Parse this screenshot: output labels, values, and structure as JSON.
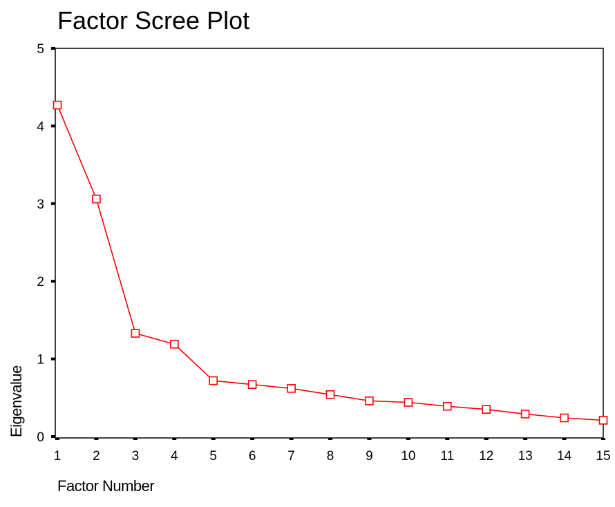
{
  "chart_data": {
    "type": "line",
    "title": "Factor Scree Plot",
    "xlabel": "Factor Number",
    "ylabel": "Eigenvalue",
    "x": [
      1,
      2,
      3,
      4,
      5,
      6,
      7,
      8,
      9,
      10,
      11,
      12,
      13,
      14,
      15
    ],
    "y": [
      4.27,
      3.06,
      1.33,
      1.19,
      0.72,
      0.67,
      0.62,
      0.54,
      0.46,
      0.44,
      0.39,
      0.35,
      0.29,
      0.24,
      0.21
    ],
    "xlim": [
      1,
      15
    ],
    "ylim": [
      0,
      5
    ],
    "yticks": [
      0,
      1,
      2,
      3,
      4,
      5
    ],
    "xticks": [
      1,
      2,
      3,
      4,
      5,
      6,
      7,
      8,
      9,
      10,
      11,
      12,
      13,
      14,
      15
    ],
    "marker": "open-square",
    "line_color": "#ff0000",
    "grid": false,
    "legend": "none"
  }
}
